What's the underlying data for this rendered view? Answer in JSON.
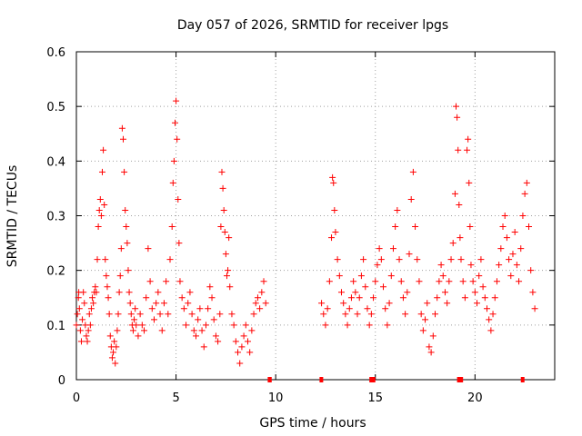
{
  "chart_data": {
    "type": "scatter",
    "title": "Day 057 of 2026, SRMTID for receiver lpgs",
    "xlabel": "GPS time / hours",
    "ylabel": "SRMTID / TECUs",
    "xlim": [
      0,
      24
    ],
    "ylim": [
      0,
      0.6
    ],
    "xticks": [
      0,
      5,
      10,
      15,
      20
    ],
    "xtick_labels": [
      "0",
      "5",
      "10",
      "15",
      "20"
    ],
    "yticks": [
      0,
      0.1,
      0.2,
      0.3,
      0.4,
      0.5,
      0.6
    ],
    "ytick_labels": [
      "0",
      "0.1",
      "0.2",
      "0.3",
      "0.4",
      "0.5",
      "0.6"
    ],
    "grid": true,
    "marker": "plus",
    "color": "#ff0000",
    "series": [
      {
        "name": "SRMTID",
        "points": [
          [
            0.0,
            0.1
          ],
          [
            0.05,
            0.12
          ],
          [
            0.1,
            0.15
          ],
          [
            0.12,
            0.16
          ],
          [
            0.15,
            0.13
          ],
          [
            0.2,
            0.09
          ],
          [
            0.25,
            0.07
          ],
          [
            0.3,
            0.11
          ],
          [
            0.35,
            0.16
          ],
          [
            0.4,
            0.14
          ],
          [
            0.45,
            0.1
          ],
          [
            0.5,
            0.08
          ],
          [
            0.55,
            0.07
          ],
          [
            0.6,
            0.09
          ],
          [
            0.65,
            0.12
          ],
          [
            0.7,
            0.1
          ],
          [
            0.75,
            0.13
          ],
          [
            0.8,
            0.15
          ],
          [
            0.85,
            0.14
          ],
          [
            0.9,
            0.16
          ],
          [
            0.95,
            0.17
          ],
          [
            1.0,
            0.16
          ],
          [
            1.05,
            0.22
          ],
          [
            1.1,
            0.28
          ],
          [
            1.15,
            0.31
          ],
          [
            1.2,
            0.33
          ],
          [
            1.25,
            0.3
          ],
          [
            1.3,
            0.38
          ],
          [
            1.35,
            0.42
          ],
          [
            1.4,
            0.32
          ],
          [
            1.45,
            0.22
          ],
          [
            1.5,
            0.19
          ],
          [
            1.55,
            0.17
          ],
          [
            1.6,
            0.15
          ],
          [
            1.65,
            0.12
          ],
          [
            1.7,
            0.08
          ],
          [
            1.75,
            0.06
          ],
          [
            1.8,
            0.04
          ],
          [
            1.85,
            0.05
          ],
          [
            1.9,
            0.07
          ],
          [
            1.95,
            0.03
          ],
          [
            2.0,
            0.06
          ],
          [
            2.05,
            0.09
          ],
          [
            2.1,
            0.12
          ],
          [
            2.15,
            0.16
          ],
          [
            2.2,
            0.19
          ],
          [
            2.25,
            0.24
          ],
          [
            2.3,
            0.46
          ],
          [
            2.35,
            0.44
          ],
          [
            2.4,
            0.38
          ],
          [
            2.45,
            0.31
          ],
          [
            2.5,
            0.28
          ],
          [
            2.55,
            0.25
          ],
          [
            2.6,
            0.2
          ],
          [
            2.65,
            0.16
          ],
          [
            2.7,
            0.14
          ],
          [
            2.75,
            0.12
          ],
          [
            2.8,
            0.1
          ],
          [
            2.85,
            0.09
          ],
          [
            2.9,
            0.11
          ],
          [
            2.95,
            0.13
          ],
          [
            3.0,
            0.1
          ],
          [
            3.1,
            0.08
          ],
          [
            3.2,
            0.12
          ],
          [
            3.3,
            0.1
          ],
          [
            3.4,
            0.09
          ],
          [
            3.5,
            0.15
          ],
          [
            3.6,
            0.24
          ],
          [
            3.7,
            0.18
          ],
          [
            3.8,
            0.13
          ],
          [
            3.9,
            0.11
          ],
          [
            4.0,
            0.14
          ],
          [
            4.1,
            0.16
          ],
          [
            4.2,
            0.12
          ],
          [
            4.3,
            0.09
          ],
          [
            4.4,
            0.14
          ],
          [
            4.5,
            0.18
          ],
          [
            4.6,
            0.12
          ],
          [
            4.7,
            0.22
          ],
          [
            4.8,
            0.28
          ],
          [
            4.85,
            0.36
          ],
          [
            4.9,
            0.4
          ],
          [
            4.95,
            0.47
          ],
          [
            5.0,
            0.51
          ],
          [
            5.05,
            0.44
          ],
          [
            5.1,
            0.33
          ],
          [
            5.15,
            0.25
          ],
          [
            5.2,
            0.18
          ],
          [
            5.3,
            0.15
          ],
          [
            5.4,
            0.13
          ],
          [
            5.5,
            0.1
          ],
          [
            5.6,
            0.14
          ],
          [
            5.7,
            0.16
          ],
          [
            5.8,
            0.12
          ],
          [
            5.9,
            0.09
          ],
          [
            6.0,
            0.08
          ],
          [
            6.1,
            0.11
          ],
          [
            6.2,
            0.13
          ],
          [
            6.3,
            0.09
          ],
          [
            6.4,
            0.06
          ],
          [
            6.5,
            0.1
          ],
          [
            6.6,
            0.13
          ],
          [
            6.7,
            0.17
          ],
          [
            6.8,
            0.15
          ],
          [
            6.9,
            0.11
          ],
          [
            7.0,
            0.08
          ],
          [
            7.1,
            0.07
          ],
          [
            7.2,
            0.12
          ],
          [
            7.25,
            0.28
          ],
          [
            7.3,
            0.38
          ],
          [
            7.35,
            0.35
          ],
          [
            7.4,
            0.31
          ],
          [
            7.45,
            0.27
          ],
          [
            7.5,
            0.23
          ],
          [
            7.55,
            0.19
          ],
          [
            7.6,
            0.2
          ],
          [
            7.65,
            0.26
          ],
          [
            7.7,
            0.17
          ],
          [
            7.8,
            0.12
          ],
          [
            7.9,
            0.1
          ],
          [
            8.0,
            0.07
          ],
          [
            8.1,
            0.05
          ],
          [
            8.2,
            0.03
          ],
          [
            8.3,
            0.06
          ],
          [
            8.4,
            0.08
          ],
          [
            8.5,
            0.1
          ],
          [
            8.6,
            0.07
          ],
          [
            8.7,
            0.05
          ],
          [
            8.8,
            0.09
          ],
          [
            8.9,
            0.12
          ],
          [
            9.0,
            0.14
          ],
          [
            9.1,
            0.15
          ],
          [
            9.2,
            0.13
          ],
          [
            9.3,
            0.16
          ],
          [
            9.4,
            0.18
          ],
          [
            9.5,
            0.14
          ],
          [
            12.3,
            0.14
          ],
          [
            12.4,
            0.12
          ],
          [
            12.5,
            0.1
          ],
          [
            12.6,
            0.13
          ],
          [
            12.7,
            0.18
          ],
          [
            12.8,
            0.26
          ],
          [
            12.85,
            0.37
          ],
          [
            12.9,
            0.36
          ],
          [
            12.95,
            0.31
          ],
          [
            13.0,
            0.27
          ],
          [
            13.1,
            0.22
          ],
          [
            13.2,
            0.19
          ],
          [
            13.3,
            0.16
          ],
          [
            13.4,
            0.14
          ],
          [
            13.5,
            0.12
          ],
          [
            13.6,
            0.1
          ],
          [
            13.7,
            0.13
          ],
          [
            13.8,
            0.15
          ],
          [
            13.9,
            0.18
          ],
          [
            14.0,
            0.16
          ],
          [
            14.1,
            0.12
          ],
          [
            14.2,
            0.15
          ],
          [
            14.3,
            0.19
          ],
          [
            14.4,
            0.22
          ],
          [
            14.5,
            0.17
          ],
          [
            14.6,
            0.13
          ],
          [
            14.7,
            0.1
          ],
          [
            14.8,
            0.12
          ],
          [
            14.9,
            0.15
          ],
          [
            15.0,
            0.18
          ],
          [
            15.1,
            0.21
          ],
          [
            15.2,
            0.24
          ],
          [
            15.3,
            0.22
          ],
          [
            15.4,
            0.17
          ],
          [
            15.5,
            0.13
          ],
          [
            15.6,
            0.1
          ],
          [
            15.7,
            0.14
          ],
          [
            15.8,
            0.19
          ],
          [
            15.9,
            0.24
          ],
          [
            16.0,
            0.28
          ],
          [
            16.1,
            0.31
          ],
          [
            16.2,
            0.22
          ],
          [
            16.3,
            0.18
          ],
          [
            16.4,
            0.15
          ],
          [
            16.5,
            0.12
          ],
          [
            16.6,
            0.16
          ],
          [
            16.7,
            0.23
          ],
          [
            16.8,
            0.33
          ],
          [
            16.9,
            0.38
          ],
          [
            17.0,
            0.28
          ],
          [
            17.1,
            0.22
          ],
          [
            17.2,
            0.18
          ],
          [
            17.3,
            0.12
          ],
          [
            17.4,
            0.09
          ],
          [
            17.5,
            0.11
          ],
          [
            17.6,
            0.14
          ],
          [
            17.7,
            0.06
          ],
          [
            17.8,
            0.05
          ],
          [
            17.9,
            0.08
          ],
          [
            18.0,
            0.12
          ],
          [
            18.1,
            0.15
          ],
          [
            18.2,
            0.18
          ],
          [
            18.3,
            0.21
          ],
          [
            18.4,
            0.19
          ],
          [
            18.5,
            0.16
          ],
          [
            18.6,
            0.14
          ],
          [
            18.7,
            0.18
          ],
          [
            18.8,
            0.22
          ],
          [
            18.9,
            0.25
          ],
          [
            19.0,
            0.34
          ],
          [
            19.05,
            0.5
          ],
          [
            19.1,
            0.48
          ],
          [
            19.15,
            0.42
          ],
          [
            19.2,
            0.32
          ],
          [
            19.25,
            0.26
          ],
          [
            19.3,
            0.22
          ],
          [
            19.4,
            0.18
          ],
          [
            19.5,
            0.15
          ],
          [
            19.6,
            0.42
          ],
          [
            19.65,
            0.44
          ],
          [
            19.7,
            0.36
          ],
          [
            19.75,
            0.28
          ],
          [
            19.8,
            0.21
          ],
          [
            19.9,
            0.18
          ],
          [
            20.0,
            0.16
          ],
          [
            20.1,
            0.14
          ],
          [
            20.2,
            0.19
          ],
          [
            20.3,
            0.22
          ],
          [
            20.4,
            0.17
          ],
          [
            20.5,
            0.15
          ],
          [
            20.6,
            0.13
          ],
          [
            20.7,
            0.11
          ],
          [
            20.8,
            0.09
          ],
          [
            20.9,
            0.12
          ],
          [
            21.0,
            0.15
          ],
          [
            21.1,
            0.18
          ],
          [
            21.2,
            0.21
          ],
          [
            21.3,
            0.24
          ],
          [
            21.4,
            0.28
          ],
          [
            21.5,
            0.3
          ],
          [
            21.6,
            0.26
          ],
          [
            21.7,
            0.22
          ],
          [
            21.8,
            0.19
          ],
          [
            21.9,
            0.23
          ],
          [
            22.0,
            0.27
          ],
          [
            22.1,
            0.21
          ],
          [
            22.2,
            0.18
          ],
          [
            22.3,
            0.24
          ],
          [
            22.4,
            0.3
          ],
          [
            22.5,
            0.34
          ],
          [
            22.6,
            0.36
          ],
          [
            22.7,
            0.28
          ],
          [
            22.8,
            0.2
          ],
          [
            22.9,
            0.16
          ],
          [
            23.0,
            0.13
          ]
        ]
      }
    ],
    "gap_markers": [
      {
        "x_start": 9.6,
        "x_end": 9.8,
        "y": 0
      },
      {
        "x_start": 12.2,
        "x_end": 12.3,
        "y": 0
      },
      {
        "x_start": 14.7,
        "x_end": 15.0,
        "y": 0
      },
      {
        "x_start": 19.1,
        "x_end": 19.4,
        "y": 0
      },
      {
        "x_start": 22.3,
        "x_end": 22.45,
        "y": 0
      }
    ]
  }
}
